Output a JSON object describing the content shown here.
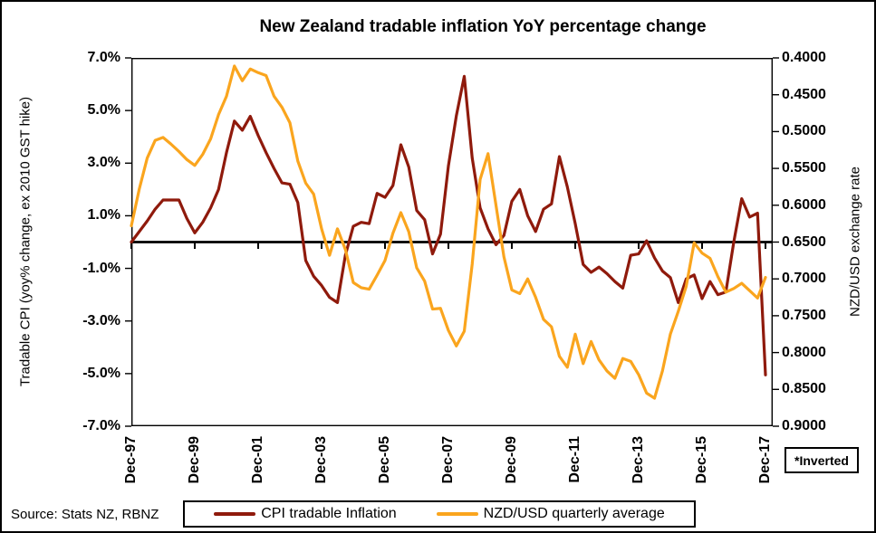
{
  "title": "New Zealand tradable inflation YoY percentage change",
  "source": "Source: Stats NZ,  RBNZ",
  "inverted_note": "*Inverted",
  "left_axis": {
    "title": "Tradable CPI (yoy% change, ex 2010 GST hike)",
    "ticks": [
      "7.0%",
      "5.0%",
      "3.0%",
      "1.0%",
      "-1.0%",
      "-3.0%",
      "-5.0%",
      "-7.0%"
    ],
    "max": 7.0,
    "min": -7.0
  },
  "right_axis": {
    "title": "NZD/USD exchange rate",
    "ticks": [
      "0.4000",
      "0.4500",
      "0.5000",
      "0.5500",
      "0.6000",
      "0.6500",
      "0.7000",
      "0.7500",
      "0.8000",
      "0.8500",
      "0.9000"
    ],
    "top_value": 0.4,
    "bottom_value": 0.9,
    "inverted": true
  },
  "x_axis": {
    "ticks": [
      "Dec-97",
      "Dec-99",
      "Dec-01",
      "Dec-03",
      "Dec-05",
      "Dec-07",
      "Dec-09",
      "Dec-11",
      "Dec-13",
      "Dec-15",
      "Dec-17"
    ]
  },
  "legend": [
    {
      "label": "CPI tradable Inflation",
      "color": "#8f1a0c"
    },
    {
      "label": "NZD/USD quarterly average",
      "color": "#faa51e"
    }
  ],
  "colors": {
    "cpi_line": "#8f1a0c",
    "nzd_line": "#faa51e",
    "axis": "#000000"
  },
  "chart_data": {
    "type": "line",
    "title": "New Zealand tradable inflation YoY percentage change",
    "xlabel": "",
    "ylabel_left": "Tradable CPI (yoy% change, ex 2010 GST hike)",
    "ylabel_right": "NZD/USD exchange rate (inverted)",
    "ylim_left": [
      -7.0,
      7.0
    ],
    "ylim_right_top_to_bottom": [
      0.4,
      0.9
    ],
    "grid": false,
    "legend_position": "bottom",
    "x": [
      "Dec-97",
      "Mar-98",
      "Jun-98",
      "Sep-98",
      "Dec-98",
      "Mar-99",
      "Jun-99",
      "Sep-99",
      "Dec-99",
      "Mar-00",
      "Jun-00",
      "Sep-00",
      "Dec-00",
      "Mar-01",
      "Jun-01",
      "Sep-01",
      "Dec-01",
      "Mar-02",
      "Jun-02",
      "Sep-02",
      "Dec-02",
      "Mar-03",
      "Jun-03",
      "Sep-03",
      "Dec-03",
      "Mar-04",
      "Jun-04",
      "Sep-04",
      "Dec-04",
      "Mar-05",
      "Jun-05",
      "Sep-05",
      "Dec-05",
      "Mar-06",
      "Jun-06",
      "Sep-06",
      "Dec-06",
      "Mar-07",
      "Jun-07",
      "Sep-07",
      "Dec-07",
      "Mar-08",
      "Jun-08",
      "Sep-08",
      "Dec-08",
      "Mar-09",
      "Jun-09",
      "Sep-09",
      "Dec-09",
      "Mar-10",
      "Jun-10",
      "Sep-10",
      "Dec-10",
      "Mar-11",
      "Jun-11",
      "Sep-11",
      "Dec-11",
      "Mar-12",
      "Jun-12",
      "Sep-12",
      "Dec-12",
      "Mar-13",
      "Jun-13",
      "Sep-13",
      "Dec-13",
      "Mar-14",
      "Jun-14",
      "Sep-14",
      "Dec-14",
      "Mar-15",
      "Jun-15",
      "Sep-15",
      "Dec-15",
      "Mar-16",
      "Jun-16",
      "Sep-16",
      "Dec-16",
      "Mar-17",
      "Jun-17",
      "Sep-17",
      "Dec-17"
    ],
    "series": [
      {
        "name": "CPI tradable Inflation",
        "axis": "left",
        "unit": "%",
        "color": "#8f1a0c",
        "values": [
          0.0,
          0.4,
          0.8,
          1.25,
          1.6,
          1.6,
          1.6,
          0.9,
          0.35,
          0.75,
          1.3,
          2.0,
          3.4,
          4.6,
          4.25,
          4.78,
          4.05,
          3.4,
          2.8,
          2.25,
          2.2,
          1.5,
          -0.7,
          -1.3,
          -1.65,
          -2.1,
          -2.3,
          -0.5,
          0.6,
          0.75,
          0.7,
          1.85,
          1.7,
          2.15,
          3.7,
          2.85,
          1.2,
          0.85,
          -0.45,
          0.3,
          2.9,
          4.8,
          6.3,
          3.2,
          1.3,
          0.5,
          -0.1,
          0.25,
          1.55,
          2.0,
          1.0,
          0.4,
          1.25,
          1.45,
          3.25,
          2.1,
          0.7,
          -0.85,
          -1.15,
          -0.95,
          -1.2,
          -1.5,
          -1.75,
          -0.5,
          -0.45,
          0.05,
          -0.6,
          -1.1,
          -1.35,
          -2.3,
          -1.4,
          -1.25,
          -2.15,
          -1.5,
          -2.0,
          -1.9,
          0.0,
          1.65,
          0.95,
          1.1,
          -5.05
        ]
      },
      {
        "name": "NZD/USD quarterly average",
        "axis": "right",
        "unit": "NZD/USD",
        "color": "#faa51e",
        "values": [
          0.628,
          0.578,
          0.536,
          0.512,
          0.508,
          0.517,
          0.527,
          0.538,
          0.546,
          0.531,
          0.51,
          0.477,
          0.452,
          0.411,
          0.431,
          0.415,
          0.42,
          0.424,
          0.452,
          0.467,
          0.488,
          0.54,
          0.57,
          0.585,
          0.632,
          0.668,
          0.632,
          0.66,
          0.705,
          0.712,
          0.714,
          0.695,
          0.675,
          0.638,
          0.61,
          0.636,
          0.685,
          0.703,
          0.741,
          0.74,
          0.77,
          0.791,
          0.771,
          0.68,
          0.565,
          0.53,
          0.6,
          0.67,
          0.715,
          0.72,
          0.7,
          0.725,
          0.755,
          0.765,
          0.805,
          0.82,
          0.775,
          0.815,
          0.785,
          0.81,
          0.825,
          0.835,
          0.808,
          0.812,
          0.83,
          0.855,
          0.862,
          0.825,
          0.775,
          0.744,
          0.71,
          0.651,
          0.665,
          0.672,
          0.697,
          0.718,
          0.713,
          0.706,
          0.716,
          0.726,
          0.698
        ]
      }
    ]
  }
}
